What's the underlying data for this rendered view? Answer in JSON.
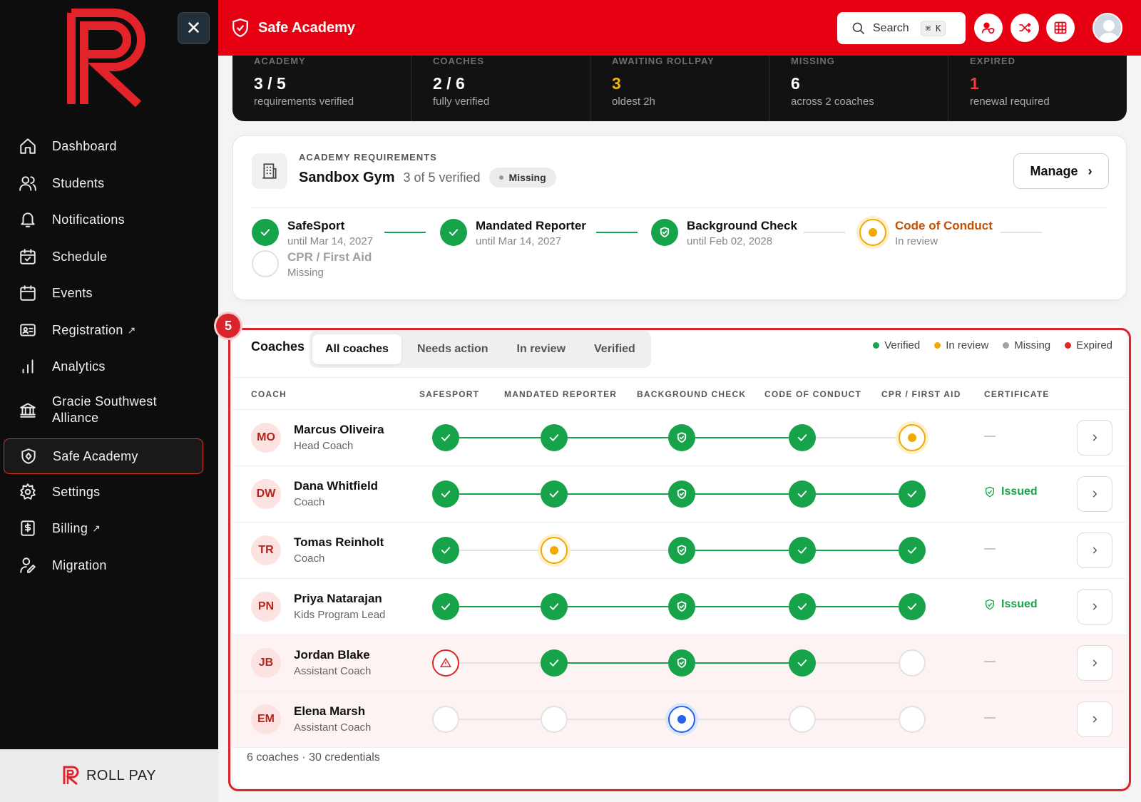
{
  "app": {
    "title": "Safe Academy",
    "brand": "ROLL PAY"
  },
  "search": {
    "label": "Search",
    "shortcut": "⌘ K"
  },
  "sidebar": {
    "items": [
      {
        "label": "Dashboard",
        "icon": "home-icon"
      },
      {
        "label": "Students",
        "icon": "users-icon"
      },
      {
        "label": "Notifications",
        "icon": "bell-icon"
      },
      {
        "label": "Schedule",
        "icon": "calendar-check-icon"
      },
      {
        "label": "Events",
        "icon": "calendar-icon"
      },
      {
        "label": "Registration",
        "icon": "id-card-icon",
        "external": true
      },
      {
        "label": "Analytics",
        "icon": "bar-chart-icon"
      },
      {
        "label": "Gracie Southwest Alliance",
        "icon": "bank-icon"
      },
      {
        "label": "Safe Academy",
        "icon": "shield-icon",
        "active": true
      },
      {
        "label": "Settings",
        "icon": "gear-icon"
      },
      {
        "label": "Billing",
        "icon": "dollar-doc-icon",
        "external": true
      },
      {
        "label": "Migration",
        "icon": "user-edit-icon"
      }
    ]
  },
  "stats": [
    {
      "label": "ACADEMY",
      "value": "3 / 5",
      "sub": "requirements verified",
      "color": "#ffffff"
    },
    {
      "label": "COACHES",
      "value": "2 / 6",
      "sub": "fully verified",
      "color": "#ffffff"
    },
    {
      "label": "AWAITING ROLLPAY",
      "value": "3",
      "sub": "oldest 2h",
      "color": "#f5b800"
    },
    {
      "label": "MISSING",
      "value": "6",
      "sub": "across 2 coaches",
      "color": "#ffffff"
    },
    {
      "label": "EXPIRED",
      "value": "1",
      "sub": "renewal required",
      "color": "#ef3b3b"
    }
  ],
  "academy": {
    "kicker": "ACADEMY REQUIREMENTS",
    "gym": "Sandbox Gym",
    "verified": "3 of 5 verified",
    "status": "Missing",
    "manage": "Manage",
    "requirements": [
      {
        "name": "SafeSport",
        "meta": "until Mar 14, 2027",
        "state": "verified"
      },
      {
        "name": "Mandated Reporter",
        "meta": "until Mar 14, 2027",
        "state": "verified"
      },
      {
        "name": "Background Check",
        "meta": "until Feb 02, 2028",
        "state": "verified-shield"
      },
      {
        "name": "Code of Conduct",
        "meta": "In review",
        "state": "review"
      },
      {
        "name": "CPR / First Aid",
        "meta": "Missing",
        "state": "missing"
      }
    ]
  },
  "coaches": {
    "marker": "5",
    "title": "Coaches",
    "tabs": [
      "All coaches",
      "Needs action",
      "In review",
      "Verified"
    ],
    "legend": [
      {
        "label": "Verified",
        "color": "#17a34a"
      },
      {
        "label": "In review",
        "color": "#f2a900"
      },
      {
        "label": "Missing",
        "color": "#a3a3a3"
      },
      {
        "label": "Expired",
        "color": "#dc2626"
      }
    ],
    "columns": [
      "COACH",
      "SAFESPORT",
      "MANDATED REPORTER",
      "BACKGROUND CHECK",
      "CODE OF CONDUCT",
      "CPR / FIRST AID",
      "CERTIFICATE"
    ],
    "rows": [
      {
        "initials": "MO",
        "name": "Marcus Oliveira",
        "role": "Head Coach",
        "states": [
          "ok",
          "ok",
          "shield",
          "ok",
          "rev"
        ],
        "certificate": "—",
        "alert": false
      },
      {
        "initials": "DW",
        "name": "Dana Whitfield",
        "role": "Coach",
        "states": [
          "ok",
          "ok",
          "shield",
          "ok",
          "ok"
        ],
        "certificate": "Issued",
        "alert": false
      },
      {
        "initials": "TR",
        "name": "Tomas Reinholt",
        "role": "Coach",
        "states": [
          "ok",
          "rev",
          "shield",
          "ok",
          "ok"
        ],
        "certificate": "—",
        "alert": false
      },
      {
        "initials": "PN",
        "name": "Priya Natarajan",
        "role": "Kids Program Lead",
        "states": [
          "ok",
          "ok",
          "shield",
          "ok",
          "ok"
        ],
        "certificate": "Issued",
        "alert": false
      },
      {
        "initials": "JB",
        "name": "Jordan Blake",
        "role": "Assistant Coach",
        "states": [
          "exp",
          "ok",
          "shield",
          "ok",
          "none"
        ],
        "certificate": "—",
        "alert": true
      },
      {
        "initials": "EM",
        "name": "Elena Marsh",
        "role": "Assistant Coach",
        "states": [
          "none",
          "none",
          "cur",
          "none",
          "none"
        ],
        "certificate": "—",
        "alert": true
      }
    ],
    "footer": "6 coaches · 30 credentials"
  }
}
